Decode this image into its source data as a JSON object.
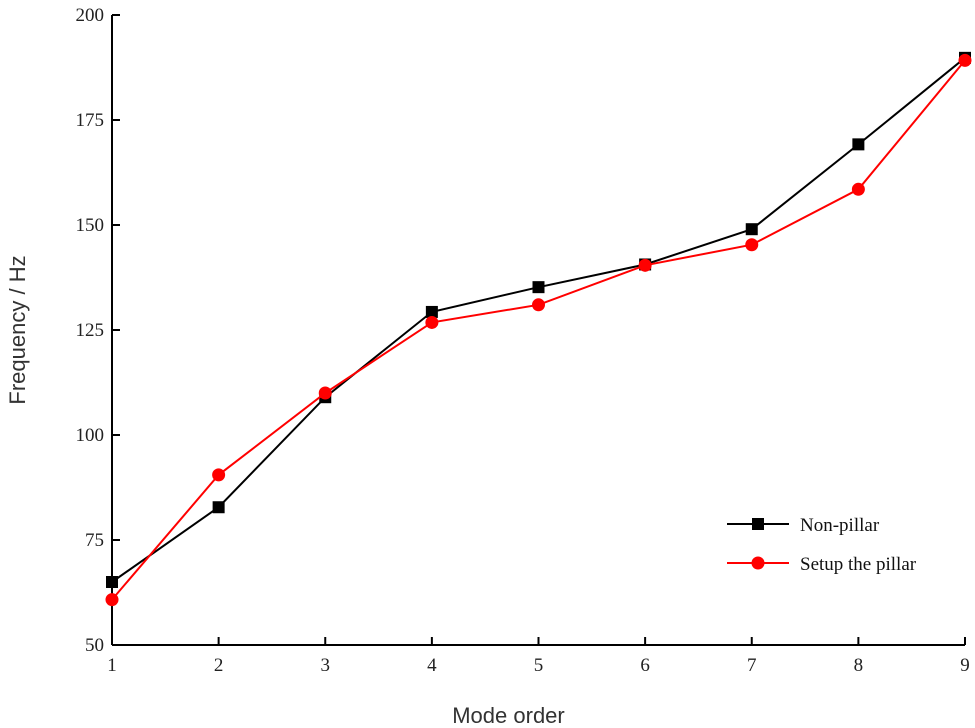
{
  "chart_data": {
    "type": "line",
    "title": "",
    "xlabel": "Mode order",
    "ylabel": "Frequency / Hz",
    "x": [
      1,
      2,
      3,
      4,
      5,
      6,
      7,
      8,
      9
    ],
    "xlim": [
      1,
      9
    ],
    "ylim": [
      50,
      200
    ],
    "yticks": [
      50,
      75,
      100,
      125,
      150,
      175,
      200
    ],
    "xticks": [
      1,
      2,
      3,
      4,
      5,
      6,
      7,
      8,
      9
    ],
    "grid": false,
    "legend_position": "bottom-right",
    "series": [
      {
        "name": "Non-pillar",
        "color": "#000000",
        "marker": "square",
        "values": [
          65,
          82.8,
          109,
          129.3,
          135.2,
          140.6,
          149,
          169.2,
          189.8
        ]
      },
      {
        "name": "Setup the pillar",
        "color": "#ff0000",
        "marker": "circle",
        "values": [
          60.8,
          90.5,
          110,
          126.8,
          131,
          140.4,
          145.3,
          158.5,
          189.2
        ]
      }
    ]
  }
}
